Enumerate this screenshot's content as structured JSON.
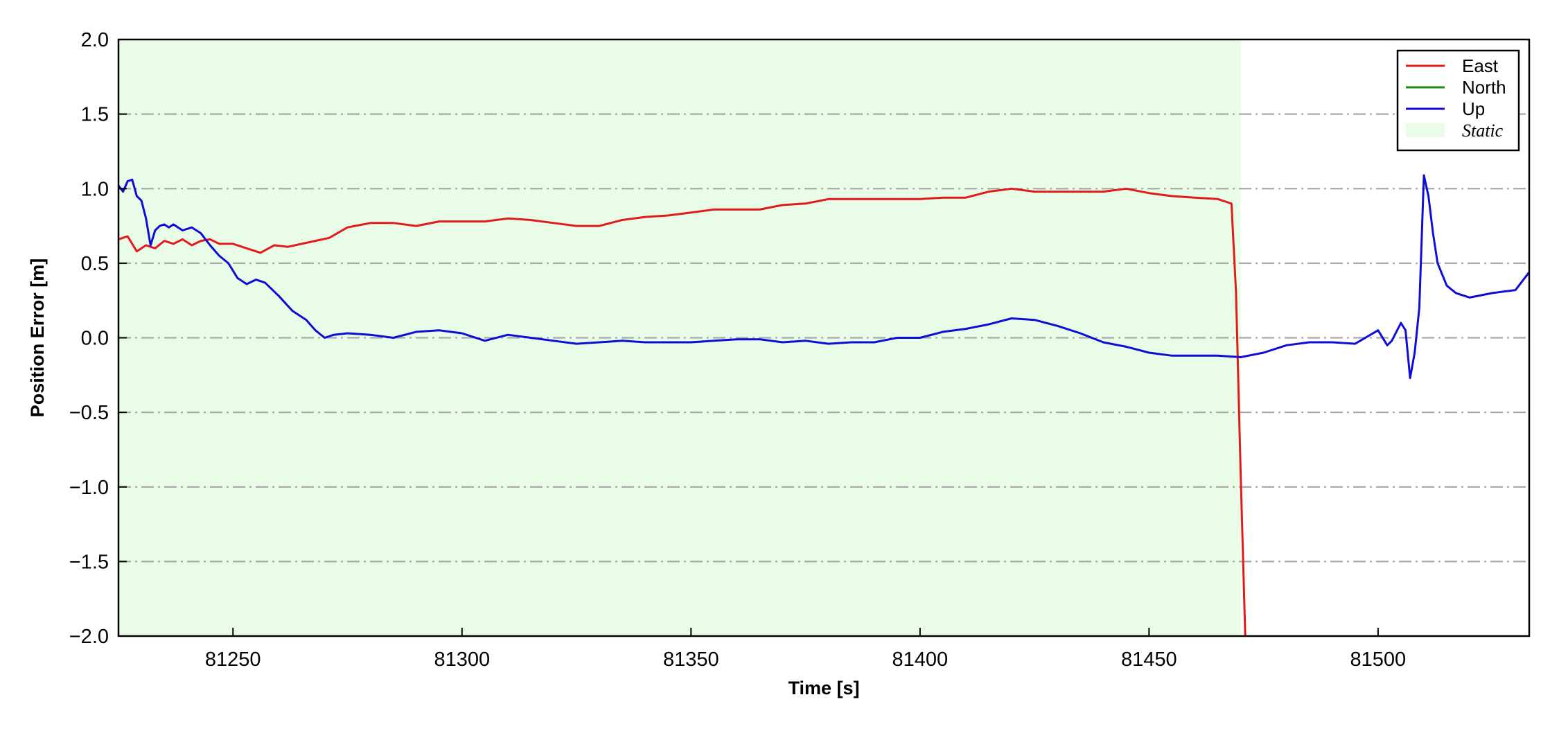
{
  "chart_data": {
    "type": "line",
    "title": "",
    "xlabel": "Time [s]",
    "ylabel": "Position Error [m]",
    "xlim": [
      81225,
      81533
    ],
    "ylim": [
      -2.0,
      2.0
    ],
    "xticks": [
      81250,
      81300,
      81350,
      81400,
      81450,
      81500
    ],
    "xtick_labels": [
      "81250",
      "81300",
      "81350",
      "81400",
      "81450",
      "81500"
    ],
    "yticks": [
      2.0,
      1.5,
      1.0,
      0.5,
      0.0,
      -0.5,
      -1.0,
      -1.5,
      -2.0
    ],
    "ytick_labels": [
      "2.0",
      "1.5",
      "1.0",
      "0.5",
      "0.0",
      "−0.5",
      "−1.0",
      "−1.5",
      "−2.0"
    ],
    "grid": "horizontal dash-dot, gray",
    "legend_position": "top-right",
    "static_region": {
      "label": "Static",
      "x_start": 81225,
      "x_end": 81470,
      "color": "#e8fce8"
    },
    "series": [
      {
        "name": "East",
        "color": "#e31a1c",
        "x": [
          81225,
          81227,
          81229,
          81231,
          81233,
          81235,
          81237,
          81239,
          81241,
          81243,
          81245,
          81247,
          81250,
          81253,
          81256,
          81259,
          81262,
          81265,
          81268,
          81271,
          81275,
          81280,
          81285,
          81290,
          81295,
          81300,
          81305,
          81310,
          81315,
          81320,
          81325,
          81330,
          81335,
          81340,
          81345,
          81350,
          81355,
          81360,
          81365,
          81370,
          81375,
          81380,
          81385,
          81390,
          81395,
          81400,
          81405,
          81410,
          81415,
          81420,
          81425,
          81430,
          81435,
          81440,
          81445,
          81450,
          81455,
          81460,
          81465,
          81468,
          81469,
          81470,
          81471
        ],
        "values": [
          0.66,
          0.68,
          0.58,
          0.62,
          0.6,
          0.65,
          0.63,
          0.66,
          0.62,
          0.65,
          0.66,
          0.63,
          0.63,
          0.6,
          0.57,
          0.62,
          0.61,
          0.63,
          0.65,
          0.67,
          0.74,
          0.77,
          0.77,
          0.75,
          0.78,
          0.78,
          0.78,
          0.8,
          0.79,
          0.77,
          0.75,
          0.75,
          0.79,
          0.81,
          0.82,
          0.84,
          0.86,
          0.86,
          0.86,
          0.89,
          0.9,
          0.93,
          0.93,
          0.93,
          0.93,
          0.93,
          0.94,
          0.94,
          0.98,
          1.0,
          0.98,
          0.98,
          0.98,
          0.98,
          1.0,
          0.97,
          0.95,
          0.94,
          0.93,
          0.9,
          0.3,
          -0.9,
          -2.0
        ]
      },
      {
        "name": "North",
        "color": "#1a8a1a",
        "x": [],
        "values": []
      },
      {
        "name": "Up",
        "color": "#0d0dd6",
        "x": [
          81225,
          81226,
          81227,
          81228,
          81229,
          81230,
          81231,
          81232,
          81233,
          81234,
          81235,
          81236,
          81237,
          81239,
          81241,
          81243,
          81245,
          81247,
          81249,
          81251,
          81253,
          81255,
          81257,
          81260,
          81263,
          81266,
          81268,
          81270,
          81272,
          81275,
          81280,
          81285,
          81290,
          81295,
          81300,
          81305,
          81310,
          81315,
          81320,
          81325,
          81330,
          81335,
          81340,
          81345,
          81350,
          81355,
          81360,
          81365,
          81370,
          81375,
          81380,
          81385,
          81390,
          81395,
          81400,
          81405,
          81410,
          81415,
          81420,
          81425,
          81430,
          81435,
          81440,
          81445,
          81450,
          81455,
          81460,
          81465,
          81470,
          81475,
          81480,
          81485,
          81490,
          81495,
          81500,
          81502,
          81503,
          81505,
          81506,
          81507,
          81508,
          81509,
          81510,
          81511,
          81512,
          81513,
          81515,
          81517,
          81520,
          81525,
          81530,
          81533
        ],
        "values": [
          1.02,
          0.98,
          1.05,
          1.06,
          0.95,
          0.92,
          0.8,
          0.62,
          0.72,
          0.75,
          0.76,
          0.74,
          0.76,
          0.72,
          0.74,
          0.7,
          0.62,
          0.55,
          0.5,
          0.4,
          0.36,
          0.39,
          0.37,
          0.28,
          0.18,
          0.12,
          0.05,
          0.0,
          0.02,
          0.03,
          0.02,
          0.0,
          0.04,
          0.05,
          0.03,
          -0.02,
          0.02,
          0.0,
          -0.02,
          -0.04,
          -0.03,
          -0.02,
          -0.03,
          -0.03,
          -0.03,
          -0.02,
          -0.01,
          -0.01,
          -0.03,
          -0.02,
          -0.04,
          -0.03,
          -0.03,
          0.0,
          0.0,
          0.04,
          0.06,
          0.09,
          0.13,
          0.12,
          0.08,
          0.03,
          -0.03,
          -0.06,
          -0.1,
          -0.12,
          -0.12,
          -0.12,
          -0.13,
          -0.1,
          -0.05,
          -0.03,
          -0.03,
          -0.04,
          0.05,
          -0.05,
          -0.02,
          0.1,
          0.05,
          -0.27,
          -0.1,
          0.2,
          1.09,
          0.95,
          0.7,
          0.5,
          0.35,
          0.3,
          0.27,
          0.3,
          0.32,
          0.44
        ]
      }
    ]
  }
}
